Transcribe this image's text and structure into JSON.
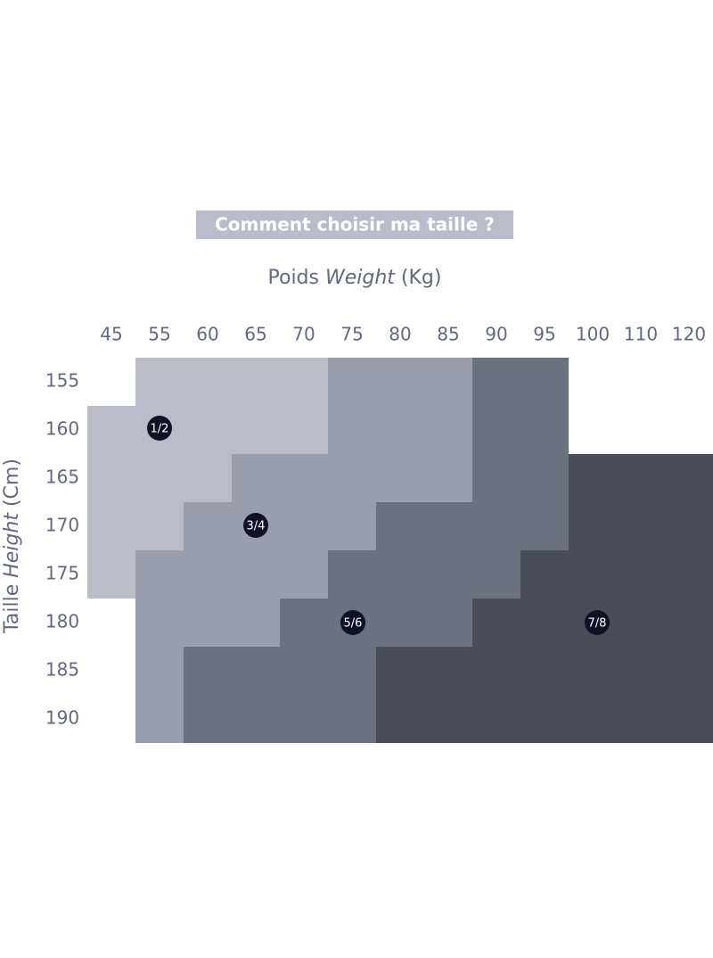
{
  "header": {
    "title": "Comment choisir ma taille ?"
  },
  "x_axis": {
    "label": [
      "Poids",
      "Weight",
      "(Kg)"
    ],
    "ticks": [
      "45",
      "55",
      "60",
      "65",
      "70",
      "75",
      "80",
      "85",
      "90",
      "95",
      "100",
      "110",
      "120"
    ]
  },
  "y_axis": {
    "label": [
      "Taille",
      "Height",
      "(Cm)"
    ],
    "ticks": [
      "155",
      "160",
      "165",
      "170",
      "175",
      "180",
      "185",
      "190"
    ]
  },
  "sizes": [
    "1/2",
    "3/4",
    "5/6",
    "7/8"
  ]
}
